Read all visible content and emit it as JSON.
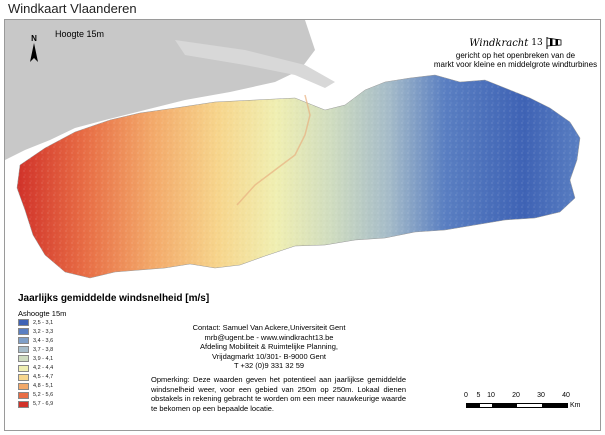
{
  "page_title": "Windkaart Vlaanderen",
  "map": {
    "height_label": "Hoogte 15m",
    "north_label": "N",
    "sea_color": "#c8c8c8",
    "land_outside_color": "#ffffff"
  },
  "branding": {
    "logo_text": "Windkracht",
    "logo_number": "13",
    "line1": "gericht op het openbreken van de",
    "line2": "markt voor kleine en middelgrote windturbines",
    "logo_icon": "windsock-icon"
  },
  "legend": {
    "title": "Jaarlijks gemiddelde windsnelheid [m/s]",
    "subtitle": "Ashoogte 15m",
    "classes": [
      {
        "label": "2,5 - 3,1",
        "color": "#3f63b5"
      },
      {
        "label": "3,2 - 3,3",
        "color": "#5a7fc2"
      },
      {
        "label": "3,4 - 3,6",
        "color": "#7f9fc8"
      },
      {
        "label": "3,7 - 3,8",
        "color": "#a6bcc9"
      },
      {
        "label": "3,9 - 4,1",
        "color": "#cfdcc0"
      },
      {
        "label": "4,2 - 4,4",
        "color": "#f0efb2"
      },
      {
        "label": "4,5 - 4,7",
        "color": "#f7d68d"
      },
      {
        "label": "4,8 - 5,1",
        "color": "#f3a96a"
      },
      {
        "label": "5,2 - 5,6",
        "color": "#e86d45"
      },
      {
        "label": "5,7 - 6,9",
        "color": "#d1322a"
      }
    ]
  },
  "contact": {
    "line1": "Contact: Samuel Van Ackere,Universiteit Gent",
    "line2": "mrb@ugent.be - www.windkracht13.be",
    "line3": "Afdeling Mobiliteit & Ruimtelijke Planning,",
    "line4": "Vrijdagmarkt 10/301- B-9000 Gent",
    "line5": "T +32 (0)9 331 32 59"
  },
  "note": "Opmerking: Deze waarden geven het potentieel aan jaarlijkse gemiddelde windsnelheid weer, voor een gebied van 250m op 250m. Lokaal dienen obstakels in rekening gebracht te worden om een meer nauwkeurige waarde te bekomen op een bepaalde locatie.",
  "scale": {
    "ticks": [
      "0",
      "5",
      "10",
      "20",
      "30",
      "40"
    ],
    "unit": "Km"
  }
}
